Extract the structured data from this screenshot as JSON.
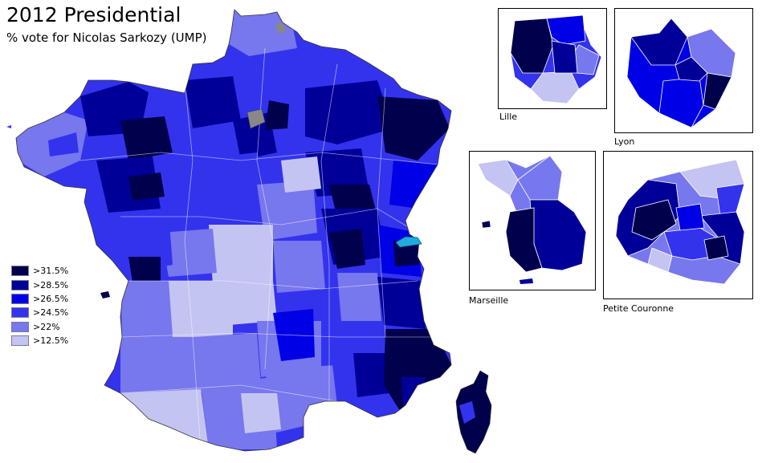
{
  "title": "2012 Presidential",
  "subtitle": "% vote for Nicolas Sarkozy (UMP)",
  "legend": [
    {
      "label": ">31.5%",
      "color": "#00004d"
    },
    {
      "label": ">28.5%",
      "color": "#000099"
    },
    {
      "label": ">26.5%",
      "color": "#0000e6"
    },
    {
      "label": ">24.5%",
      "color": "#3333ee"
    },
    {
      "label": ">22%",
      "color": "#7777ee"
    },
    {
      "label": ">12.5%",
      "color": "#c4c4f2"
    }
  ],
  "insets": {
    "lille": "Lille",
    "lyon": "Lyon",
    "marseille": "Marseille",
    "petite_couronne": "Petite Couronne"
  },
  "colors": {
    "no_data": "#888888",
    "lake": "#22aadd",
    "border": "#ffffff"
  }
}
